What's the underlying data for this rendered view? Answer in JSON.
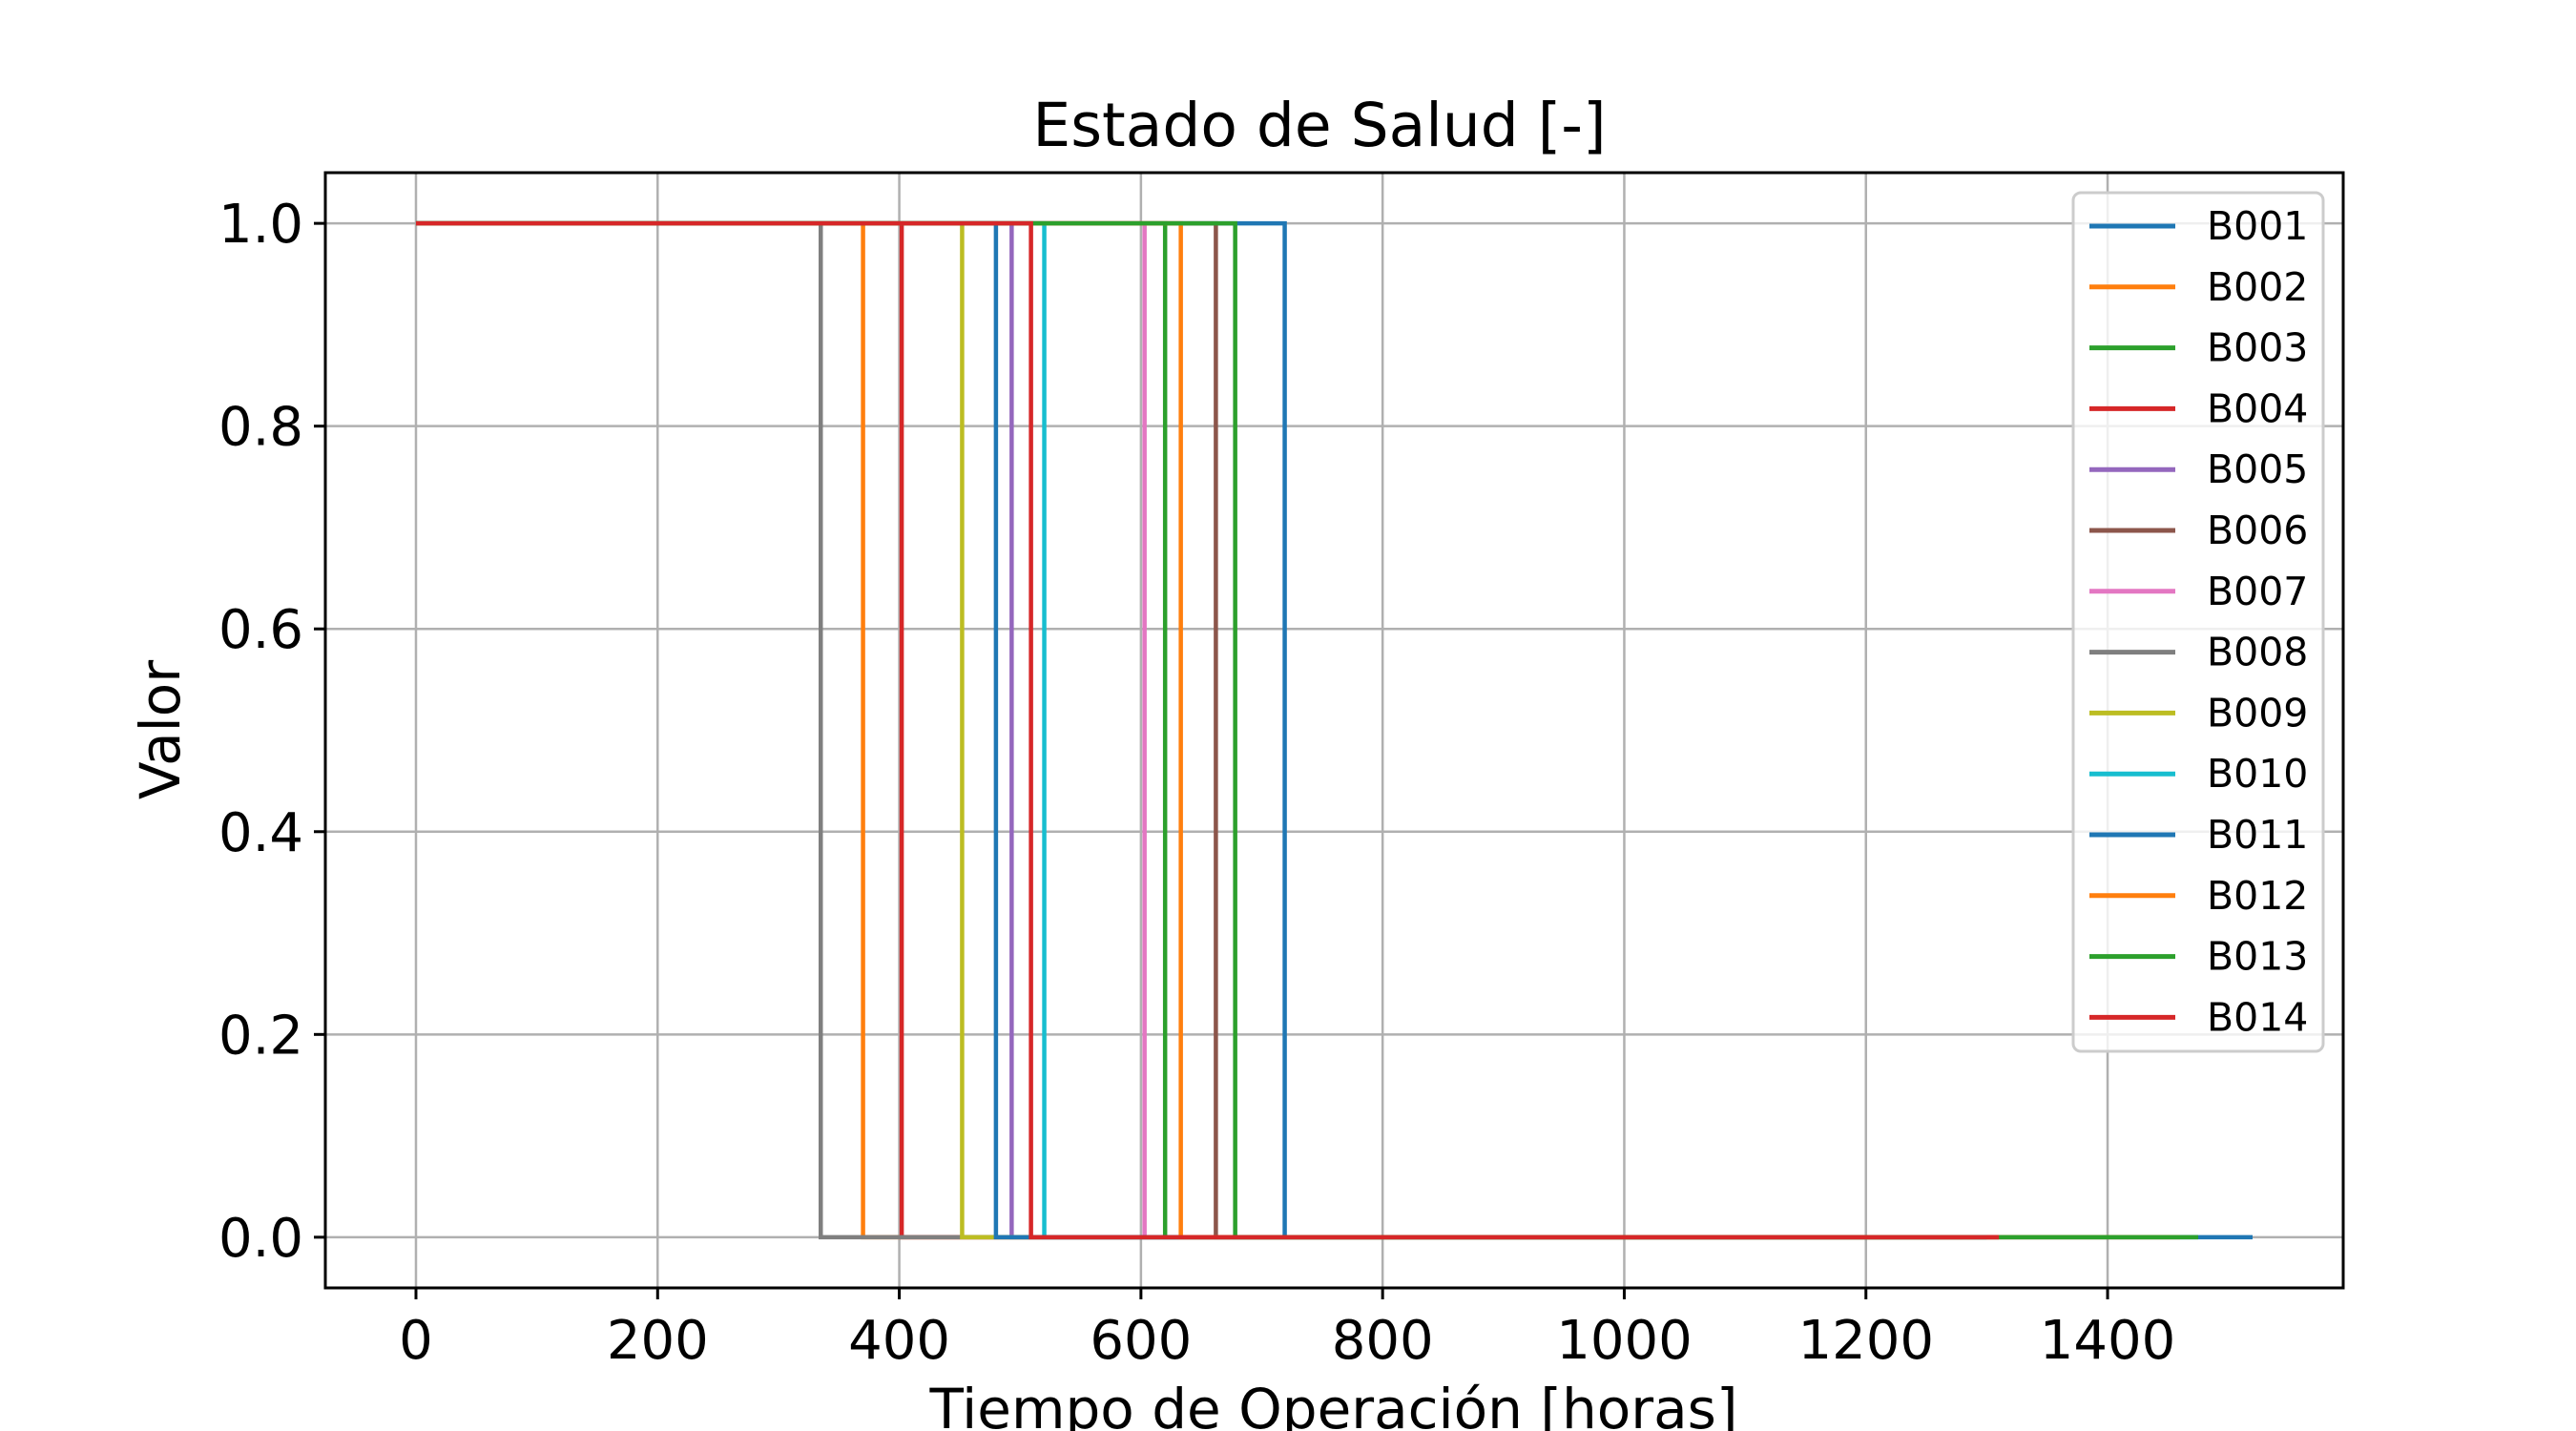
{
  "chart_data": {
    "type": "line",
    "title": "Estado de Salud [-]",
    "xlabel": "Tiempo de Operación [horas]",
    "ylabel": "Valor",
    "xlim": [
      -75,
      1595
    ],
    "ylim": [
      -0.05,
      1.05
    ],
    "xticks": [
      0,
      200,
      400,
      600,
      800,
      1000,
      1200,
      1400
    ],
    "xtick_labels": [
      "0",
      "200",
      "400",
      "600",
      "800",
      "1000",
      "1200",
      "1400"
    ],
    "yticks": [
      0.0,
      0.2,
      0.4,
      0.6,
      0.8,
      1.0
    ],
    "ytick_labels": [
      "0.0",
      "0.2",
      "0.4",
      "0.6",
      "0.8",
      "1.0"
    ],
    "grid": true,
    "legend_position": "top-right",
    "series": [
      {
        "name": "B001",
        "color": "#1f77b4",
        "x": [
          0,
          719,
          719,
          1520
        ],
        "y": [
          1,
          1,
          0,
          0
        ]
      },
      {
        "name": "B002",
        "color": "#ff7f0e",
        "x": [
          0,
          370,
          370,
          1460
        ],
        "y": [
          1,
          1,
          0,
          0
        ]
      },
      {
        "name": "B003",
        "color": "#2ca02c",
        "x": [
          0,
          620,
          620,
          1475
        ],
        "y": [
          1,
          1,
          0,
          0
        ]
      },
      {
        "name": "B004",
        "color": "#d62728",
        "x": [
          0,
          402,
          402,
          1310
        ],
        "y": [
          1,
          1,
          0,
          0
        ]
      },
      {
        "name": "B005",
        "color": "#9467bd",
        "x": [
          0,
          493,
          493,
          1290
        ],
        "y": [
          1,
          1,
          0,
          0
        ]
      },
      {
        "name": "B006",
        "color": "#8c564b",
        "x": [
          0,
          662,
          662,
          1280
        ],
        "y": [
          1,
          1,
          0,
          0
        ]
      },
      {
        "name": "B007",
        "color": "#e377c2",
        "x": [
          0,
          603,
          603,
          1270
        ],
        "y": [
          1,
          1,
          0,
          0
        ]
      },
      {
        "name": "B008",
        "color": "#7f7f7f",
        "x": [
          0,
          335,
          335,
          1200
        ],
        "y": [
          1,
          1,
          0,
          0
        ]
      },
      {
        "name": "B009",
        "color": "#bcbd22",
        "x": [
          0,
          452,
          452,
          1250
        ],
        "y": [
          1,
          1,
          0,
          0
        ]
      },
      {
        "name": "B010",
        "color": "#17becf",
        "x": [
          0,
          520,
          520,
          1260
        ],
        "y": [
          1,
          1,
          0,
          0
        ]
      },
      {
        "name": "B011",
        "color": "#1f77b4",
        "x": [
          0,
          480,
          480,
          1300
        ],
        "y": [
          1,
          1,
          0,
          0
        ]
      },
      {
        "name": "B012",
        "color": "#ff7f0e",
        "x": [
          0,
          633,
          633,
          1290
        ],
        "y": [
          1,
          1,
          0,
          0
        ]
      },
      {
        "name": "B013",
        "color": "#2ca02c",
        "x": [
          0,
          678,
          678,
          1300
        ],
        "y": [
          1,
          1,
          0,
          0
        ]
      },
      {
        "name": "B014",
        "color": "#d62728",
        "x": [
          0,
          509,
          509,
          1310
        ],
        "y": [
          1,
          1,
          0,
          0
        ]
      }
    ]
  }
}
